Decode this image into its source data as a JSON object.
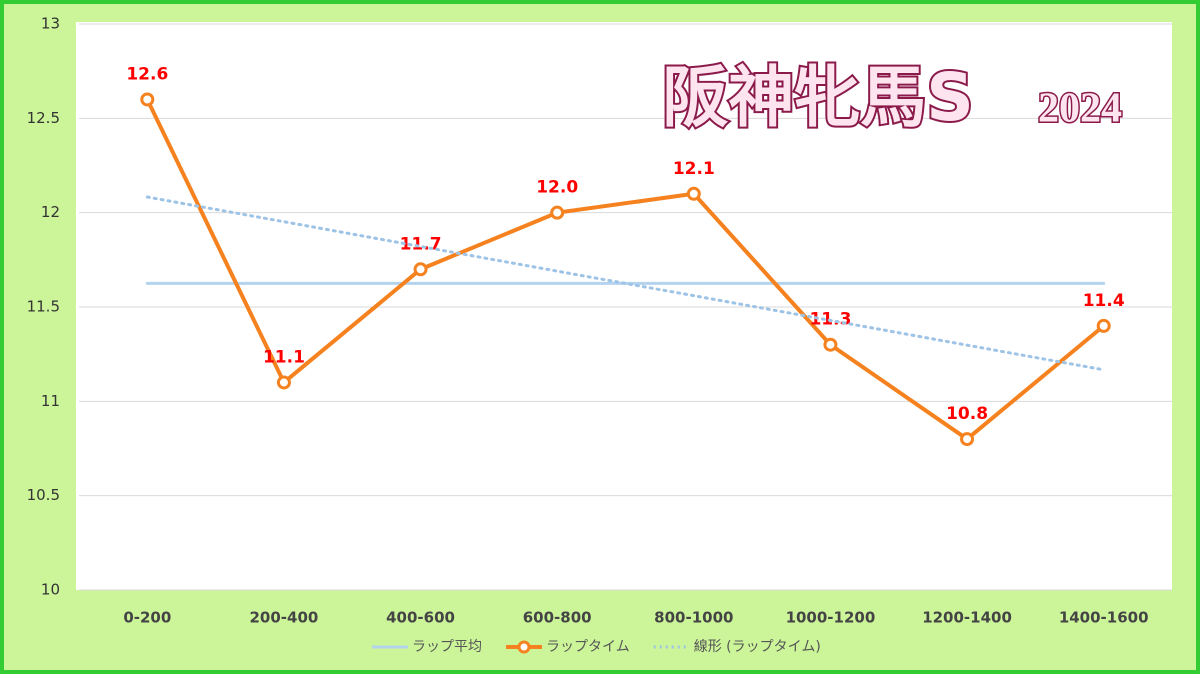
{
  "chart_data": {
    "type": "line",
    "title": "阪神牝馬S",
    "subtitle": "2024",
    "categories": [
      "0-200",
      "200-400",
      "400-600",
      "600-800",
      "800-1000",
      "1000-1200",
      "1200-1400",
      "1400-1600"
    ],
    "series": [
      {
        "name": "ラップ平均",
        "color": "#b4d3ef",
        "values": [
          11.625,
          11.625,
          11.625,
          11.625,
          11.625,
          11.625,
          11.625,
          11.625
        ]
      },
      {
        "name": "ラップタイム",
        "color": "#f5821f",
        "markers": true,
        "values": [
          12.6,
          11.1,
          11.7,
          12.0,
          12.1,
          11.3,
          10.8,
          11.4
        ],
        "value_labels": [
          "12.6",
          "11.1",
          "11.7",
          "12.0",
          "12.1",
          "11.3",
          "10.8",
          "11.4"
        ],
        "label_color": "#ff0000"
      },
      {
        "name": "線形 (ラップタイム)",
        "color": "#9dc3e6",
        "dotted": true,
        "values": [
          12.083,
          11.952,
          11.821,
          11.69,
          11.56,
          11.429,
          11.298,
          11.167
        ]
      }
    ],
    "ylim": [
      10,
      13
    ],
    "yticks": [
      10,
      10.5,
      11,
      11.5,
      12,
      12.5,
      13
    ],
    "grid": true,
    "legend": "bottom"
  }
}
